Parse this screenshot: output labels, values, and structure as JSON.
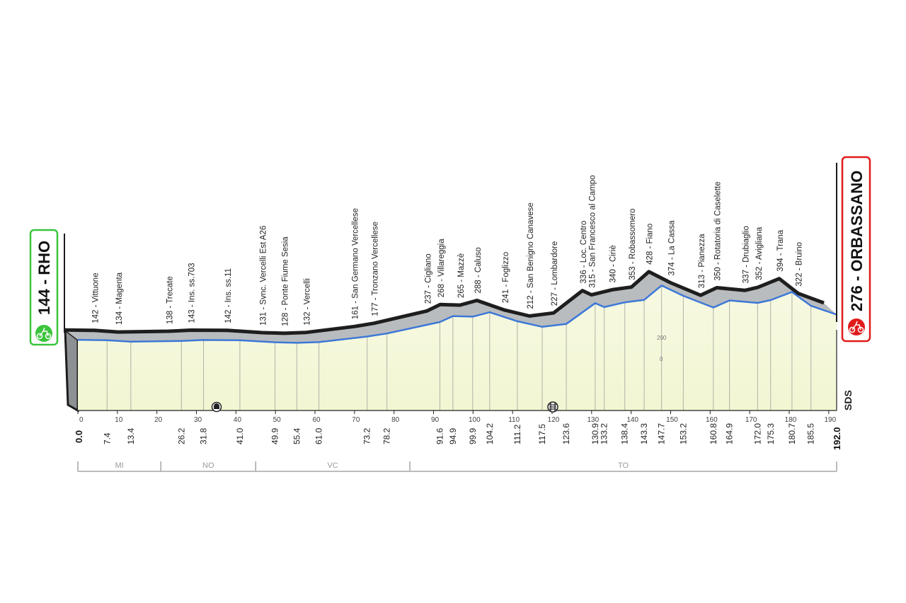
{
  "chart_data": {
    "type": "area",
    "title": "",
    "xlabel": "",
    "ylabel": "",
    "x_unit": "km",
    "xlim": [
      0,
      192
    ],
    "x_ticks": [
      0,
      10,
      20,
      30,
      40,
      50,
      60,
      70,
      80,
      90,
      100,
      110,
      120,
      130,
      140,
      150,
      160,
      170,
      180,
      190
    ],
    "y_axis_labels": [
      "200",
      "0"
    ],
    "start": {
      "label": "144 - RHO",
      "km": "0.0",
      "altitude": 144,
      "color": "#3cc43c"
    },
    "finish": {
      "label": "276 - ORBASSANO",
      "km": "192.0",
      "altitude": 276,
      "color": "#e01b1b"
    },
    "waypoints": [
      {
        "km": 7.4,
        "km_label": "7.4",
        "altitude": 142,
        "label": "142 - Vittuone"
      },
      {
        "km": 13.4,
        "km_label": "13.4",
        "altitude": 134,
        "label": "134 - Magenta"
      },
      {
        "km": 26.2,
        "km_label": "26.2",
        "altitude": 138,
        "label": "138 - Trecate"
      },
      {
        "km": 31.8,
        "km_label": "31.8",
        "altitude": 143,
        "label": "143 - Ins. ss.703"
      },
      {
        "km": 41.0,
        "km_label": "41.0",
        "altitude": 142,
        "label": "142 - Ins. ss.11"
      },
      {
        "km": 49.9,
        "km_label": "49.9",
        "altitude": 131,
        "label": "131 - Svnc. Vercelli Est A26"
      },
      {
        "km": 55.4,
        "km_label": "55.4",
        "altitude": 128,
        "label": "128 - Ponte Fiume Sesia"
      },
      {
        "km": 61.0,
        "km_label": "61.0",
        "altitude": 132,
        "label": "132 - Vercelli"
      },
      {
        "km": 73.2,
        "km_label": "73.2",
        "altitude": 161,
        "label": "161 - San Germano Vercellese"
      },
      {
        "km": 78.2,
        "km_label": "78.2",
        "altitude": 177,
        "label": "177 - Tronzano Vercellese"
      },
      {
        "km": 91.6,
        "km_label": "91.6",
        "altitude": 237,
        "label": "237 - Cigliano"
      },
      {
        "km": 94.9,
        "km_label": "94.9",
        "altitude": 268,
        "label": "268 - Villareggia"
      },
      {
        "km": 99.9,
        "km_label": "99.9",
        "altitude": 265,
        "label": "265 - Mazzè"
      },
      {
        "km": 104.2,
        "km_label": "104.2",
        "altitude": 288,
        "label": "288 - Caluso"
      },
      {
        "km": 111.2,
        "km_label": "111.2",
        "altitude": 241,
        "label": "241 - Foglizzo"
      },
      {
        "km": 117.5,
        "km_label": "117.5",
        "altitude": 212,
        "label": "212 - San Benigno Canavese"
      },
      {
        "km": 123.6,
        "km_label": "123.6",
        "altitude": 227,
        "label": "227 - Lombardore"
      },
      {
        "km": 130.9,
        "km_label": "130.9",
        "altitude": 336,
        "label": "336 - Loc. Centro"
      },
      {
        "km": 133.2,
        "km_label": "133.2",
        "altitude": 315,
        "label": "315 - San Francesco al Campo"
      },
      {
        "km": 138.4,
        "km_label": "138.4",
        "altitude": 340,
        "label": "340 - Ciriè"
      },
      {
        "km": 143.3,
        "km_label": "143.3",
        "altitude": 353,
        "label": "353 - Robassomero"
      },
      {
        "km": 147.7,
        "km_label": "147.7",
        "altitude": 428,
        "label": "428 - Fiano"
      },
      {
        "km": 153.2,
        "km_label": "153.2",
        "altitude": 374,
        "label": "374 - La Cassa"
      },
      {
        "km": 160.8,
        "km_label": "160.8",
        "altitude": 313,
        "label": "313 - Pianezza"
      },
      {
        "km": 164.9,
        "km_label": "164.9",
        "altitude": 350,
        "label": "350 - Rotatoria  di Caselette"
      },
      {
        "km": 172.0,
        "km_label": "172.0",
        "altitude": 337,
        "label": "337 - Drubiaglio"
      },
      {
        "km": 175.3,
        "km_label": "175.3",
        "altitude": 352,
        "label": "352 - Avigliana"
      },
      {
        "km": 180.7,
        "km_label": "180.7",
        "altitude": 394,
        "label": "394 - Trana"
      },
      {
        "km": 185.5,
        "km_label": "185.5",
        "altitude": 322,
        "label": "322 - Bruino"
      }
    ],
    "provinces": [
      {
        "name": "MI",
        "from": 0,
        "to": 21
      },
      {
        "name": "NO",
        "from": 21,
        "to": 45
      },
      {
        "name": "VC",
        "from": 45,
        "to": 84
      },
      {
        "name": "TO",
        "from": 84,
        "to": 192
      }
    ],
    "markers": [
      {
        "km": 35.5,
        "icon": "tunnel-icon"
      },
      {
        "km": 120.3,
        "icon": "railway-crossing-icon"
      }
    ],
    "brand": "SDS"
  }
}
